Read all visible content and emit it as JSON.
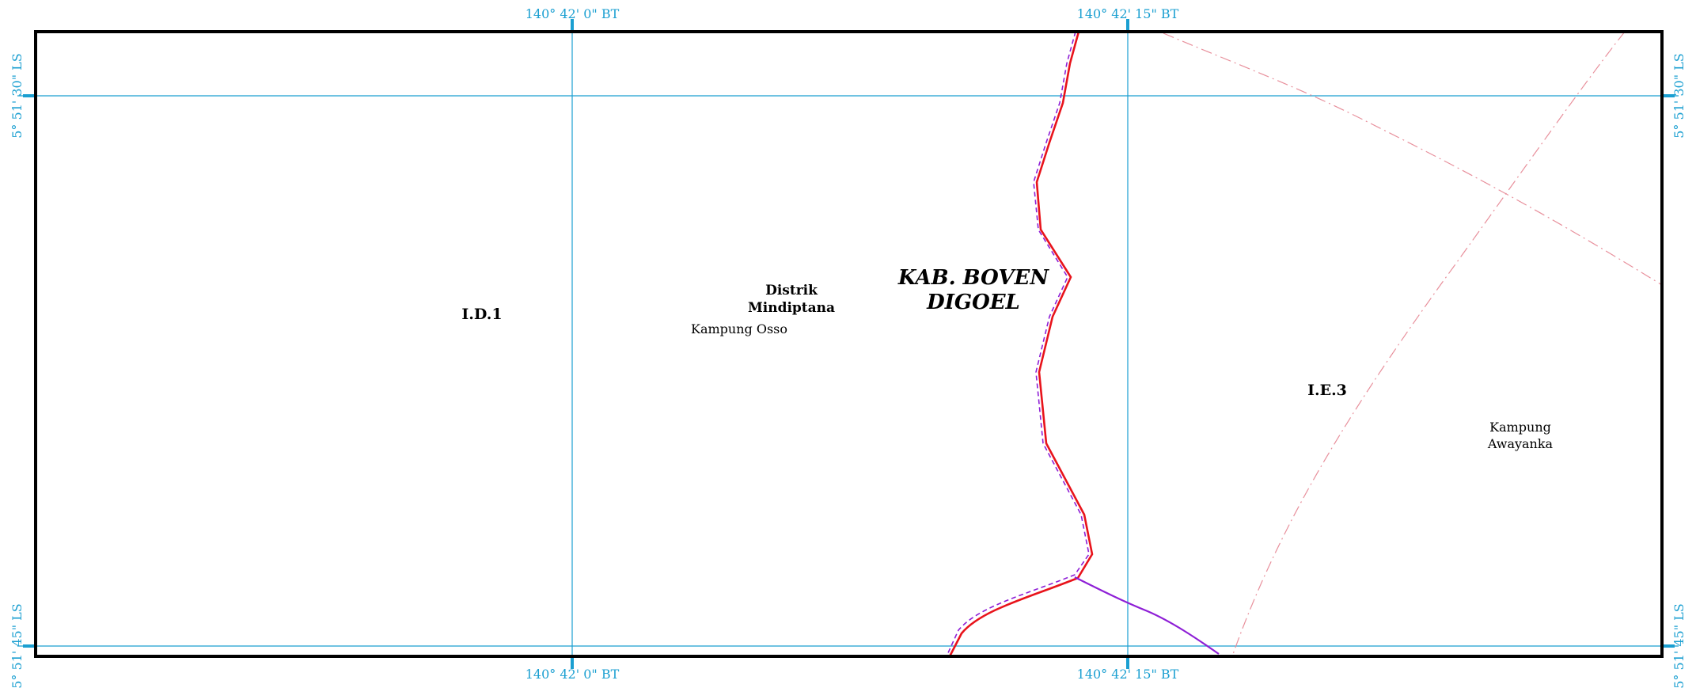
{
  "grid": {
    "top_lon_left": "140° 42' 0\" BT",
    "top_lon_right": "140° 42' 15\" BT",
    "bottom_lon_left": "140° 42' 0\" BT",
    "bottom_lon_right": "140° 42' 15\" BT",
    "left_lat_top": "5° 51' 30\" LS",
    "left_lat_bottom": "5° 51' 45\" LS",
    "right_lat_top": "5° 51' 30\" LS",
    "right_lat_bottom": "5° 51' 45\" LS"
  },
  "labels": {
    "sheet_left": "I.D.1",
    "sheet_right": "I.E.3",
    "district_line1": "Distrik",
    "district_line2": "Mindiptana",
    "regency_line1": "KAB. BOVEN",
    "regency_line2": "DIGOEL",
    "village_osso": "Kampung Osso",
    "village_awayanka_line1": "Kampung",
    "village_awayanka_line2": "Awayanka"
  },
  "colors": {
    "frame": "#000000",
    "grid": "#1a9fd1",
    "boundary_red": "#e8131b",
    "boundary_purple": "#8e1fd6",
    "road_pink": "#e8909c"
  }
}
